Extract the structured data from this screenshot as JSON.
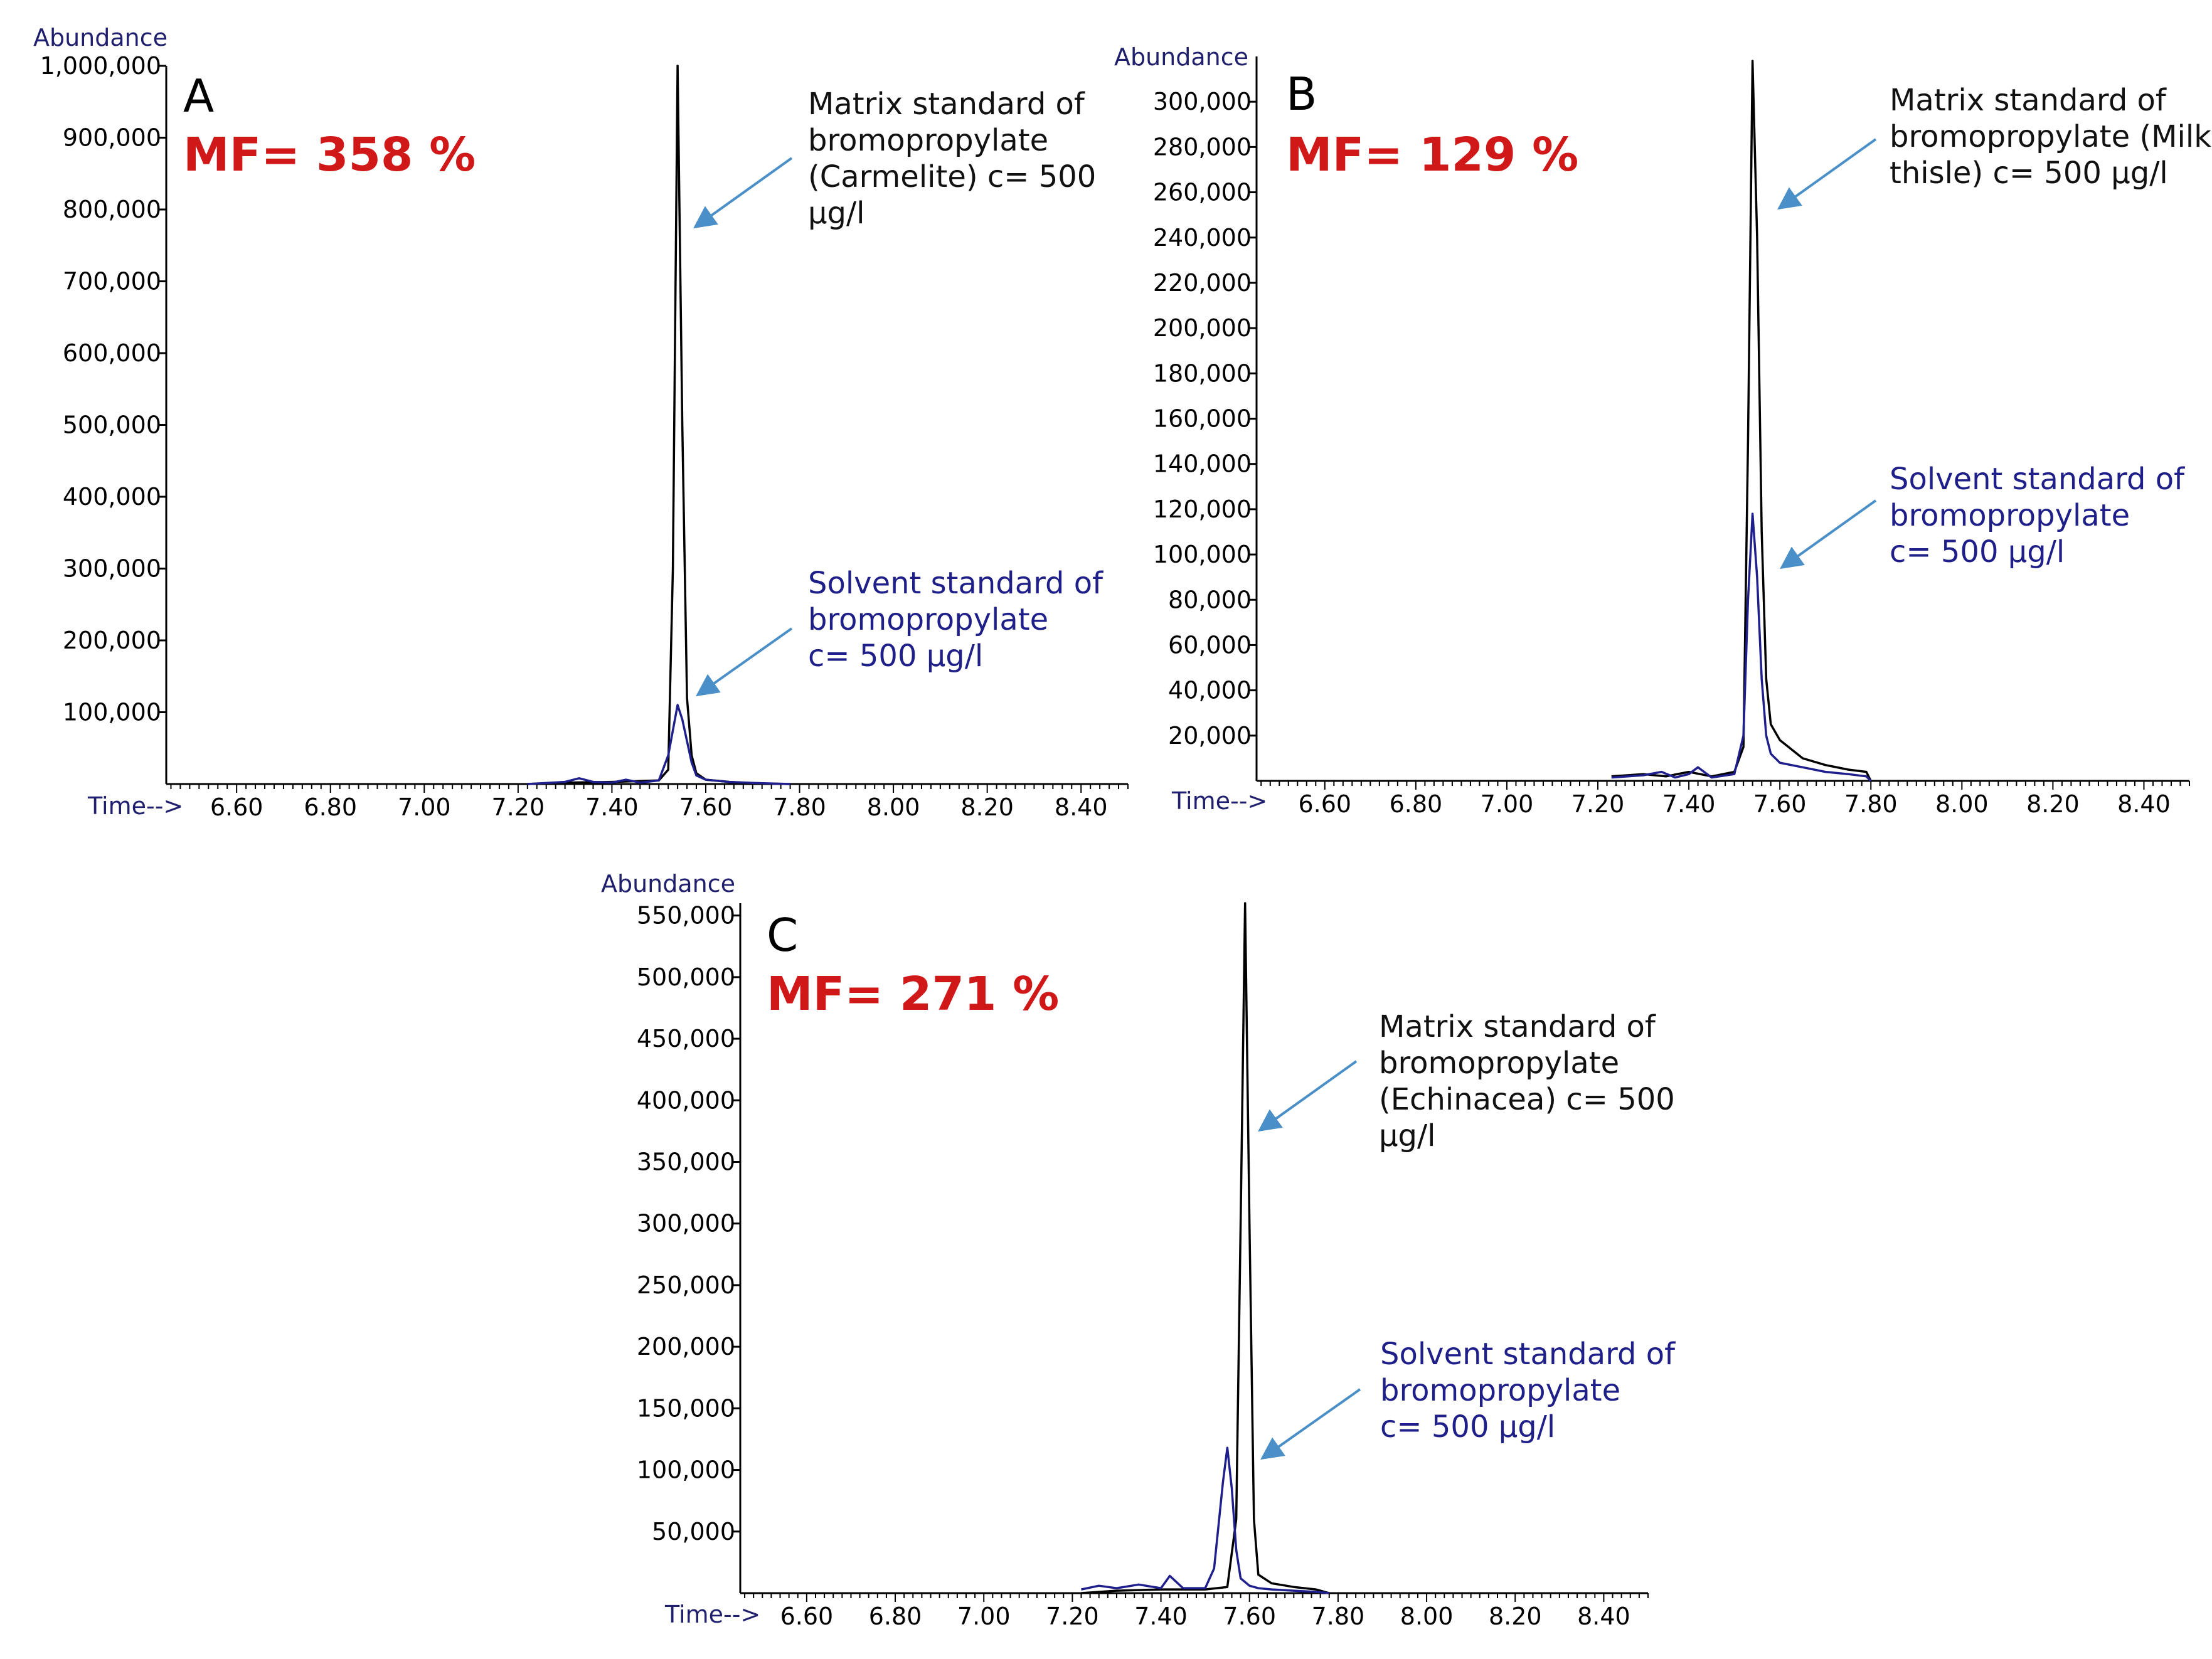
{
  "chart_data": [
    {
      "type": "line",
      "panel": "A",
      "mf_label": "MF= 358 %",
      "xlabel": "Time-->",
      "ylabel": "Abundance",
      "xlim": [
        6.45,
        8.5
      ],
      "ylim": [
        0,
        1000000
      ],
      "x_ticks": [
        "6.60",
        "6.80",
        "7.00",
        "7.20",
        "7.40",
        "7.60",
        "7.80",
        "8.00",
        "8.20",
        "8.40"
      ],
      "y_ticks": [
        "100,000",
        "200,000",
        "300,000",
        "400,000",
        "500,000",
        "600,000",
        "700,000",
        "800,000",
        "900,000",
        "1,000,000"
      ],
      "y_tick_values": [
        100000,
        200000,
        300000,
        400000,
        500000,
        600000,
        700000,
        800000,
        900000,
        1000000
      ],
      "series": [
        {
          "color": "#000000",
          "x": [
            7.22,
            7.3,
            7.4,
            7.5,
            7.52,
            7.53,
            7.54,
            7.55,
            7.56,
            7.57,
            7.58,
            7.6,
            7.65,
            7.7,
            7.78
          ],
          "y": [
            0,
            2000,
            3000,
            5000,
            20000,
            300000,
            1000000,
            500000,
            120000,
            40000,
            15000,
            6000,
            3000,
            1000,
            0
          ]
        },
        {
          "color": "#1e1e8c",
          "x": [
            7.22,
            7.3,
            7.33,
            7.36,
            7.4,
            7.43,
            7.46,
            7.5,
            7.52,
            7.54,
            7.55,
            7.57,
            7.58,
            7.6,
            7.65,
            7.7,
            7.78
          ],
          "y": [
            0,
            3000,
            8000,
            3000,
            2000,
            6000,
            2000,
            5000,
            40000,
            110000,
            90000,
            30000,
            12000,
            6000,
            3000,
            1500,
            0
          ]
        }
      ],
      "annotations": [
        {
          "lines": [
            "Matrix standard of",
            "bromopropylate",
            "(Carmelite)  c= 500",
            "µg/l"
          ],
          "x": 7.55,
          "y": 800000
        },
        {
          "lines": [
            "Solvent standard of",
            "bromopropylate",
            "c= 500 µg/l"
          ],
          "x": 7.56,
          "y": 120000
        }
      ]
    },
    {
      "type": "line",
      "panel": "B",
      "mf_label": "MF= 129 %",
      "xlabel": "Time-->",
      "ylabel": "Abundance",
      "xlim": [
        6.45,
        8.5
      ],
      "ylim": [
        0,
        320000
      ],
      "x_ticks": [
        "6.60",
        "6.80",
        "7.00",
        "7.20",
        "7.40",
        "7.60",
        "7.80",
        "8.00",
        "8.20",
        "8.40"
      ],
      "y_ticks": [
        "20,000",
        "40,000",
        "60,000",
        "80,000",
        "100,000",
        "120,000",
        "140,000",
        "160,000",
        "180,000",
        "200,000",
        "220,000",
        "240,000",
        "260,000",
        "280,000",
        "300,000"
      ],
      "y_tick_values": [
        20000,
        40000,
        60000,
        80000,
        100000,
        120000,
        140000,
        160000,
        180000,
        200000,
        220000,
        240000,
        260000,
        280000,
        300000
      ],
      "series": [
        {
          "color": "#000000",
          "x": [
            7.23,
            7.3,
            7.35,
            7.4,
            7.45,
            7.5,
            7.52,
            7.53,
            7.54,
            7.55,
            7.56,
            7.57,
            7.58,
            7.6,
            7.65,
            7.7,
            7.75,
            7.79,
            7.8
          ],
          "y": [
            2000,
            3000,
            2000,
            4000,
            2000,
            4000,
            15000,
            150000,
            318000,
            240000,
            110000,
            45000,
            25000,
            18000,
            10000,
            7000,
            5000,
            4000,
            0
          ]
        },
        {
          "color": "#1e1e8c",
          "x": [
            7.23,
            7.3,
            7.34,
            7.37,
            7.4,
            7.42,
            7.45,
            7.5,
            7.52,
            7.53,
            7.54,
            7.55,
            7.56,
            7.57,
            7.58,
            7.6,
            7.65,
            7.7,
            7.75,
            7.79,
            7.8
          ],
          "y": [
            1500,
            2500,
            4000,
            1500,
            3000,
            6000,
            1500,
            3000,
            20000,
            80000,
            118000,
            90000,
            45000,
            20000,
            12000,
            8000,
            6000,
            4000,
            3000,
            2000,
            0
          ]
        }
      ],
      "annotations": [
        {
          "lines": [
            "Matrix standard of",
            "bromopropylate  (Milk",
            "thisle)  c= 500 µg/l"
          ],
          "x": 7.55,
          "y": 250000
        },
        {
          "lines": [
            "Solvent standard of",
            "bromopropylate",
            "c= 500 µg/l"
          ],
          "x": 7.56,
          "y": 95000
        }
      ]
    },
    {
      "type": "line",
      "panel": "C",
      "mf_label": "MF= 271 %",
      "xlabel": "Time-->",
      "ylabel": "Abundance",
      "xlim": [
        6.45,
        8.5
      ],
      "ylim": [
        0,
        560000
      ],
      "x_ticks": [
        "6.60",
        "6.80",
        "7.00",
        "7.20",
        "7.40",
        "7.60",
        "7.80",
        "8.00",
        "8.20",
        "8.40"
      ],
      "y_ticks": [
        "50,000",
        "100,000",
        "150,000",
        "200,000",
        "250,000",
        "300,000",
        "350,000",
        "400,000",
        "450,000",
        "500,000",
        "550,000"
      ],
      "y_tick_values": [
        50000,
        100000,
        150000,
        200000,
        250000,
        300000,
        350000,
        400000,
        450000,
        500000,
        550000
      ],
      "series": [
        {
          "color": "#000000",
          "x": [
            7.22,
            7.3,
            7.4,
            7.5,
            7.55,
            7.57,
            7.58,
            7.59,
            7.6,
            7.61,
            7.62,
            7.65,
            7.7,
            7.75,
            7.78
          ],
          "y": [
            0,
            2000,
            3000,
            3000,
            5000,
            60000,
            300000,
            560000,
            300000,
            60000,
            15000,
            8000,
            5000,
            3000,
            0
          ]
        },
        {
          "color": "#1e1e8c",
          "x": [
            7.22,
            7.26,
            7.3,
            7.35,
            7.4,
            7.42,
            7.45,
            7.5,
            7.52,
            7.54,
            7.55,
            7.56,
            7.57,
            7.58,
            7.6,
            7.62,
            7.65,
            7.7,
            7.75,
            7.78
          ],
          "y": [
            3000,
            6000,
            4000,
            7000,
            4000,
            14000,
            4000,
            4000,
            20000,
            90000,
            118000,
            85000,
            35000,
            12000,
            6000,
            4000,
            3000,
            2000,
            1000,
            0
          ]
        }
      ],
      "annotations": [
        {
          "lines": [
            "Matrix standard of",
            "bromopropylate",
            "(Echinacea) c= 500",
            "µg/l"
          ],
          "x": 7.6,
          "y": 400000
        },
        {
          "lines": [
            "Solvent standard of",
            "bromopropylate",
            "c= 500 µg/l"
          ],
          "x": 7.57,
          "y": 100000
        }
      ]
    }
  ]
}
